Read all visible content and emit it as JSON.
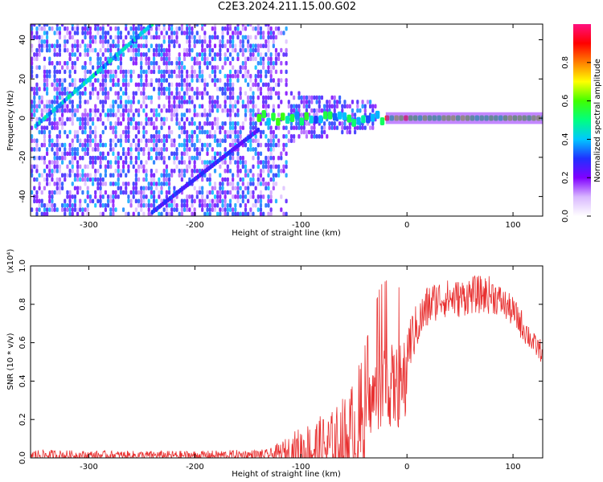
{
  "title": "C2E3.2024.211.15.00.G02",
  "chart_data": [
    {
      "type": "heatmap",
      "xlabel": "Height of straight line (km)",
      "ylabel": "Frequency (Hz)",
      "xlim": [
        -355,
        128
      ],
      "ylim": [
        -50,
        48
      ],
      "x_ticks": [
        "-300",
        "-200",
        "-100",
        "0",
        "100"
      ],
      "y_ticks": [
        "-40",
        "-20",
        "0",
        "20",
        "40"
      ],
      "colorbar": {
        "label": "Normalized spectral amplitude",
        "range": [
          0,
          1
        ],
        "ticks": [
          "0.0",
          "0.2",
          "0.4",
          "0.6",
          "0.8"
        ],
        "colors": [
          "#ffffff",
          "#d9b8ff",
          "#8000ff",
          "#2030ff",
          "#00c8ff",
          "#00ff80",
          "#40ff00",
          "#ffff00",
          "#ff8000",
          "#ff0000",
          "#ff1080"
        ]
      },
      "features": [
        {
          "name": "",
          "x": [
            -350,
            -240
          ],
          "y": [
            -4,
            48
          ]
        },
        {
          "name": "",
          "x": [
            -240,
            -140
          ],
          "y": [
            -48,
            -6
          ]
        },
        {
          "name": "",
          "x": [
            -140,
            128
          ],
          "y": [
            0,
            0
          ]
        }
      ],
      "noise_region_x": [
        -355,
        -113
      ],
      "grid": false
    },
    {
      "type": "line",
      "xlabel": "Height of straight line (km)",
      "ylabel": "SNR (10 * v/v)",
      "y_multiplier": "(x10⁴)",
      "xlim": [
        -355,
        128
      ],
      "ylim": [
        0,
        1.0
      ],
      "x_ticks": [
        "-300",
        "-200",
        "-100",
        "0",
        "100"
      ],
      "y_ticks": [
        "0.0",
        "0.2",
        "0.4",
        "0.6",
        "0.8",
        "1.0"
      ],
      "series": [
        {
          "name": "",
          "color": "#e83030",
          "envelope_x": [
            -355,
            -300,
            -200,
            -130,
            -115,
            -100,
            -85,
            -70,
            -55,
            -45,
            -35,
            -25,
            -18,
            -12,
            -5,
            0,
            10,
            20,
            30,
            40,
            50,
            60,
            70,
            80,
            90,
            100,
            110,
            120,
            128
          ],
          "envelope_y": [
            0.03,
            0.025,
            0.025,
            0.03,
            0.06,
            0.1,
            0.13,
            0.15,
            0.22,
            0.32,
            0.45,
            0.6,
            0.62,
            0.58,
            0.6,
            0.65,
            0.75,
            0.85,
            0.88,
            0.88,
            0.88,
            0.9,
            0.9,
            0.9,
            0.85,
            0.8,
            0.72,
            0.62,
            0.58
          ],
          "noise_y": [
            0.015,
            0.012,
            0.012,
            0.015,
            0.04,
            0.07,
            0.08,
            0.1,
            0.14,
            0.18,
            0.25,
            0.38,
            0.35,
            0.3,
            0.15,
            0.08,
            0.06,
            0.06,
            0.05,
            0.05,
            0.05,
            0.05,
            0.05,
            0.05,
            0.04,
            0.04,
            0.04,
            0.03,
            0.03
          ]
        }
      ],
      "grid": false
    }
  ]
}
